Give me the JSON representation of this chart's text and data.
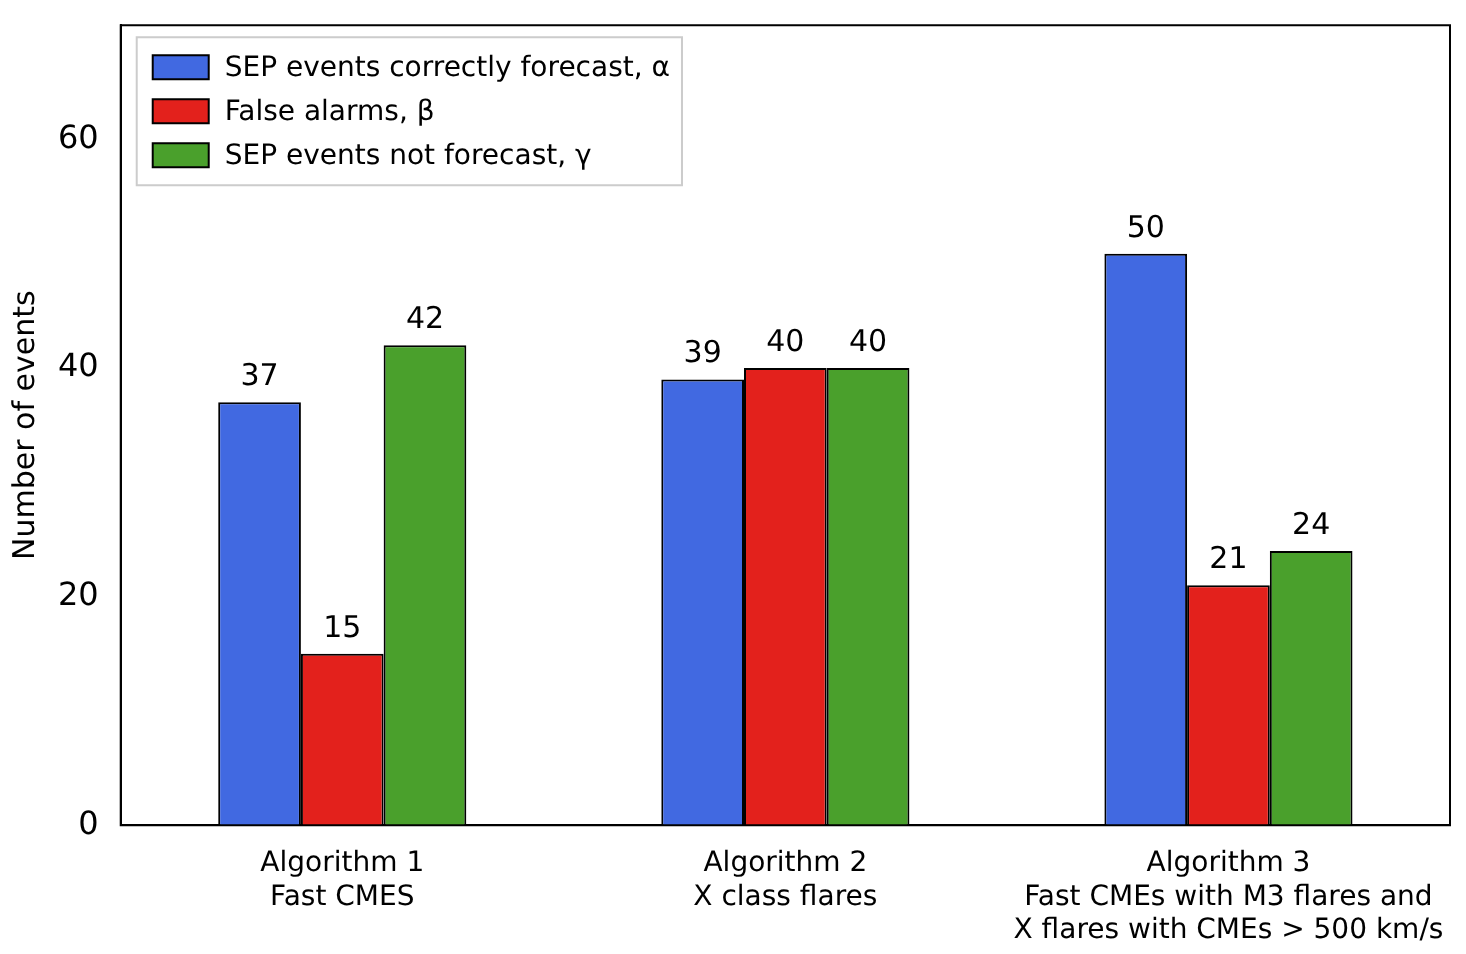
{
  "chart_data": {
    "type": "bar",
    "ylabel": "Number of events",
    "categories": [
      "Algorithm 1\nFast CMES",
      "Algorithm 2\nX class flares",
      "Algorithm 3\nFast CMEs with M3 flares and\nX flares with CMEs > 500 km/s"
    ],
    "series": [
      {
        "name": "SEP events correctly forecast, α",
        "color": "#4169e1",
        "values": [
          37,
          39,
          50
        ]
      },
      {
        "name": "False alarms, β",
        "color": "#e3211c",
        "values": [
          15,
          40,
          21
        ]
      },
      {
        "name": "SEP events not forecast, γ",
        "color": "#4aa02c",
        "values": [
          42,
          40,
          24
        ]
      }
    ],
    "ylim": [
      0,
      70
    ],
    "yticks": [
      0,
      20,
      40,
      60
    ],
    "grid": false,
    "legend": "top left",
    "data_labels": true
  }
}
